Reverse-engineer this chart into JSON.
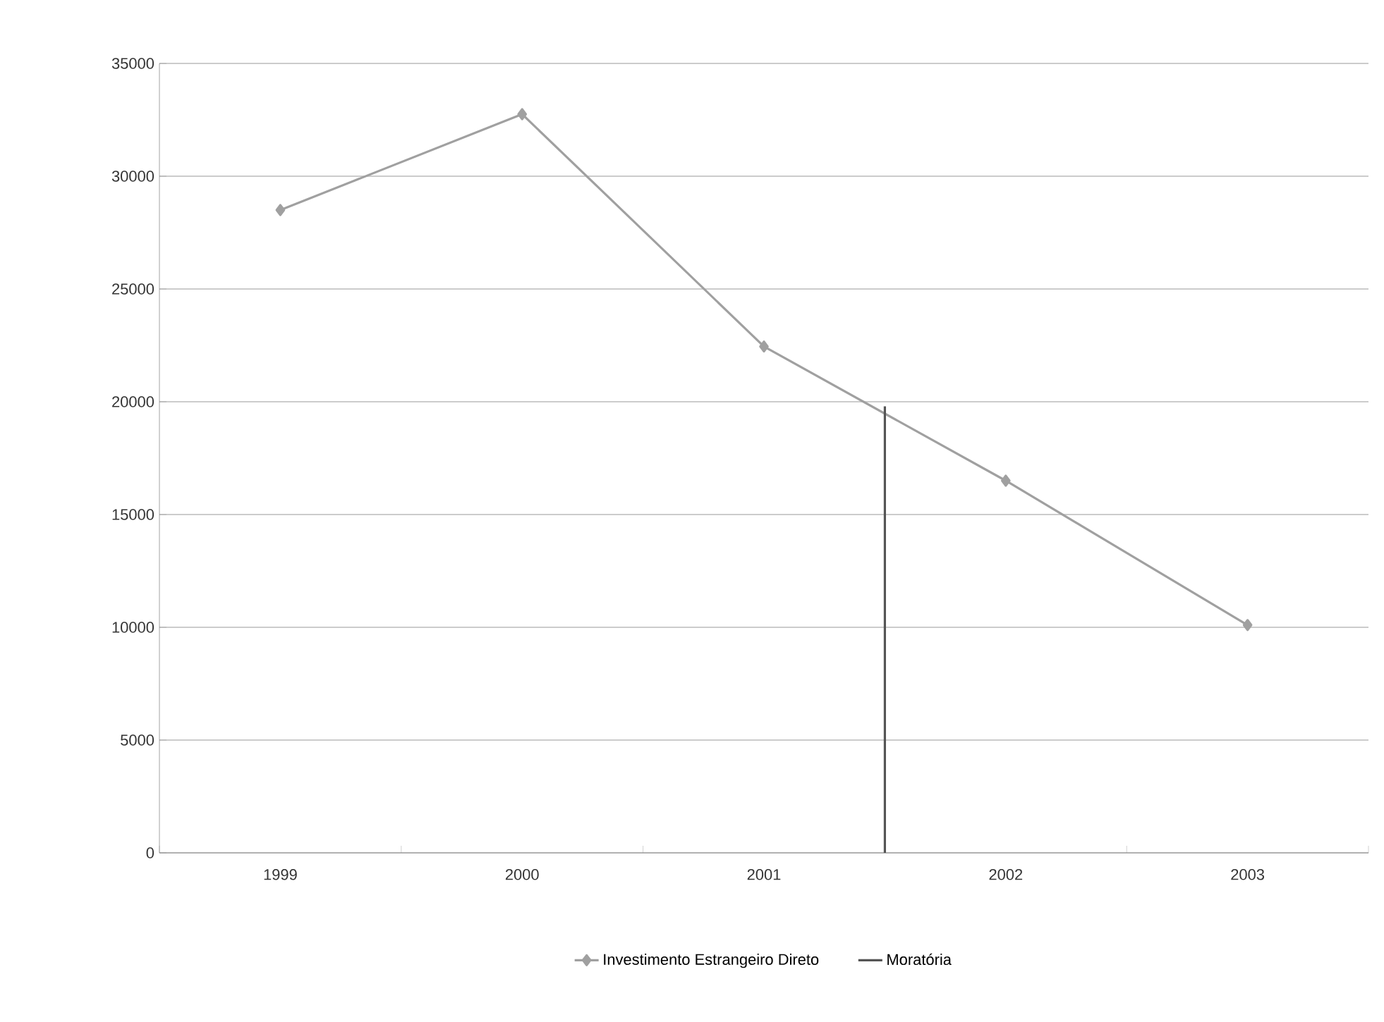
{
  "chart_data": {
    "type": "line",
    "x": [
      1999,
      2000,
      2001,
      2002,
      2003
    ],
    "series": [
      {
        "name": "Investimento Estrangeiro Direto",
        "color": "#a0a0a0",
        "values": [
          28500,
          32750,
          22450,
          16500,
          10100
        ],
        "marker": "diamond"
      },
      {
        "name": "Moratória",
        "color": "#555555",
        "type": "line",
        "x": [
          2001.5,
          2001.5
        ],
        "values": [
          0,
          19800
        ],
        "marker": "none"
      }
    ],
    "xlim": [
      1998.5,
      2003.5
    ],
    "xticks": [
      1999,
      2000,
      2001,
      2002,
      2003
    ],
    "ylim": [
      0,
      35000
    ],
    "yticks": [
      0,
      5000,
      10000,
      15000,
      20000,
      25000,
      30000,
      35000
    ],
    "grid": "y",
    "legend": "bottom"
  }
}
